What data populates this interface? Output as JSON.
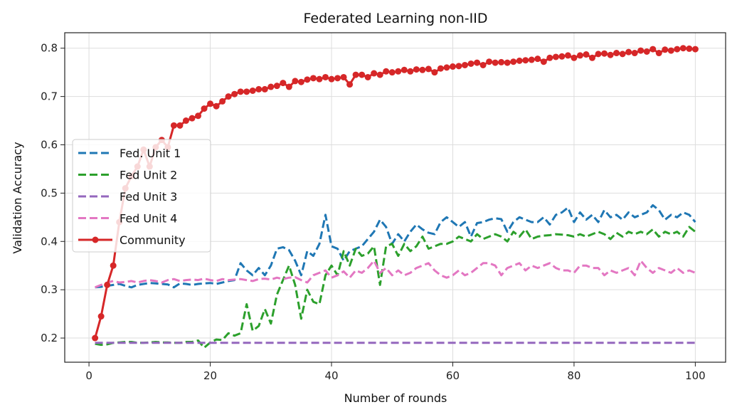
{
  "chart_data": {
    "type": "line",
    "title": "Federated Learning non-IID",
    "xlabel": "Number of rounds",
    "ylabel": "Validation Accuracy",
    "xlim": [
      -4,
      105
    ],
    "ylim": [
      0.15,
      0.832
    ],
    "xticks": [
      0,
      20,
      40,
      60,
      80,
      100
    ],
    "yticks": [
      0.2,
      0.3,
      0.4,
      0.5,
      0.6,
      0.7,
      0.8
    ],
    "grid": true,
    "legend_position": "center-left",
    "x_start": 1,
    "series": [
      {
        "name": "Fed. Unit 1",
        "color": "#1f77b4",
        "style": "dashed",
        "values": [
          0.305,
          0.306,
          0.308,
          0.31,
          0.312,
          0.308,
          0.305,
          0.31,
          0.312,
          0.314,
          0.313,
          0.312,
          0.311,
          0.305,
          0.313,
          0.312,
          0.31,
          0.312,
          0.313,
          0.314,
          0.312,
          0.315,
          0.318,
          0.32,
          0.355,
          0.34,
          0.33,
          0.345,
          0.33,
          0.35,
          0.385,
          0.388,
          0.382,
          0.36,
          0.33,
          0.38,
          0.37,
          0.395,
          0.455,
          0.39,
          0.385,
          0.36,
          0.38,
          0.385,
          0.39,
          0.405,
          0.42,
          0.445,
          0.43,
          0.395,
          0.415,
          0.4,
          0.42,
          0.435,
          0.425,
          0.418,
          0.415,
          0.44,
          0.45,
          0.44,
          0.43,
          0.44,
          0.41,
          0.438,
          0.44,
          0.445,
          0.448,
          0.446,
          0.42,
          0.44,
          0.45,
          0.445,
          0.44,
          0.44,
          0.45,
          0.435,
          0.455,
          0.46,
          0.47,
          0.44,
          0.46,
          0.445,
          0.455,
          0.44,
          0.465,
          0.45,
          0.455,
          0.445,
          0.46,
          0.45,
          0.455,
          0.46,
          0.475,
          0.465,
          0.445,
          0.455,
          0.45,
          0.46,
          0.455,
          0.44
        ]
      },
      {
        "name": "Fed Unit 2",
        "color": "#2ca02c",
        "style": "dashed",
        "values": [
          0.188,
          0.186,
          0.187,
          0.19,
          0.191,
          0.192,
          0.192,
          0.19,
          0.19,
          0.191,
          0.192,
          0.191,
          0.191,
          0.19,
          0.19,
          0.192,
          0.192,
          0.195,
          0.18,
          0.191,
          0.197,
          0.196,
          0.21,
          0.205,
          0.21,
          0.27,
          0.215,
          0.225,
          0.26,
          0.23,
          0.29,
          0.32,
          0.35,
          0.31,
          0.24,
          0.3,
          0.275,
          0.27,
          0.33,
          0.35,
          0.33,
          0.38,
          0.35,
          0.385,
          0.37,
          0.375,
          0.39,
          0.31,
          0.39,
          0.395,
          0.37,
          0.395,
          0.38,
          0.39,
          0.41,
          0.385,
          0.39,
          0.395,
          0.395,
          0.4,
          0.41,
          0.405,
          0.4,
          0.415,
          0.405,
          0.41,
          0.415,
          0.41,
          0.4,
          0.42,
          0.41,
          0.425,
          0.405,
          0.41,
          0.412,
          0.413,
          0.415,
          0.414,
          0.413,
          0.41,
          0.415,
          0.41,
          0.415,
          0.42,
          0.415,
          0.405,
          0.418,
          0.41,
          0.42,
          0.415,
          0.42,
          0.415,
          0.425,
          0.41,
          0.42,
          0.415,
          0.42,
          0.41,
          0.43,
          0.42
        ]
      },
      {
        "name": "Fed Unit 3",
        "color": "#9467bd",
        "style": "dashed",
        "values": [
          0.19,
          0.19,
          0.19,
          0.19,
          0.19,
          0.19,
          0.19,
          0.19,
          0.19,
          0.19,
          0.19,
          0.19,
          0.19,
          0.19,
          0.19,
          0.19,
          0.19,
          0.19,
          0.19,
          0.19,
          0.19,
          0.19,
          0.19,
          0.19,
          0.19,
          0.19,
          0.19,
          0.19,
          0.19,
          0.19,
          0.19,
          0.19,
          0.19,
          0.19,
          0.19,
          0.19,
          0.19,
          0.19,
          0.19,
          0.19,
          0.19,
          0.19,
          0.19,
          0.19,
          0.19,
          0.19,
          0.19,
          0.19,
          0.19,
          0.19,
          0.19,
          0.19,
          0.19,
          0.19,
          0.19,
          0.19,
          0.19,
          0.19,
          0.19,
          0.19,
          0.19,
          0.19,
          0.19,
          0.19,
          0.19,
          0.19,
          0.19,
          0.19,
          0.19,
          0.19,
          0.19,
          0.19,
          0.19,
          0.19,
          0.19,
          0.19,
          0.19,
          0.19,
          0.19,
          0.19,
          0.19,
          0.19,
          0.19,
          0.19,
          0.19,
          0.19,
          0.19,
          0.19,
          0.19,
          0.19,
          0.19,
          0.19,
          0.19,
          0.19,
          0.19,
          0.19,
          0.19,
          0.19,
          0.19,
          0.19
        ]
      },
      {
        "name": "Fed Unit 4",
        "color": "#e377c2",
        "style": "dashed",
        "values": [
          0.305,
          0.31,
          0.315,
          0.318,
          0.315,
          0.316,
          0.318,
          0.315,
          0.318,
          0.32,
          0.318,
          0.315,
          0.32,
          0.322,
          0.318,
          0.32,
          0.321,
          0.32,
          0.323,
          0.32,
          0.318,
          0.322,
          0.32,
          0.321,
          0.322,
          0.32,
          0.318,
          0.322,
          0.323,
          0.321,
          0.325,
          0.322,
          0.325,
          0.326,
          0.32,
          0.315,
          0.33,
          0.335,
          0.34,
          0.325,
          0.33,
          0.338,
          0.325,
          0.34,
          0.335,
          0.345,
          0.36,
          0.335,
          0.345,
          0.33,
          0.34,
          0.33,
          0.335,
          0.345,
          0.35,
          0.355,
          0.34,
          0.33,
          0.325,
          0.33,
          0.34,
          0.33,
          0.335,
          0.345,
          0.355,
          0.355,
          0.35,
          0.33,
          0.345,
          0.35,
          0.355,
          0.34,
          0.35,
          0.345,
          0.35,
          0.355,
          0.345,
          0.34,
          0.34,
          0.335,
          0.35,
          0.35,
          0.345,
          0.345,
          0.33,
          0.34,
          0.335,
          0.34,
          0.345,
          0.33,
          0.36,
          0.345,
          0.335,
          0.345,
          0.34,
          0.335,
          0.345,
          0.335,
          0.34,
          0.335
        ]
      },
      {
        "name": "Community",
        "color": "#d62728",
        "style": "solid-markers",
        "values": [
          0.2,
          0.245,
          0.31,
          0.35,
          0.44,
          0.51,
          0.535,
          0.555,
          0.59,
          0.555,
          0.595,
          0.61,
          0.595,
          0.64,
          0.64,
          0.65,
          0.655,
          0.66,
          0.675,
          0.685,
          0.68,
          0.69,
          0.7,
          0.705,
          0.71,
          0.71,
          0.712,
          0.715,
          0.715,
          0.72,
          0.722,
          0.728,
          0.72,
          0.732,
          0.73,
          0.735,
          0.738,
          0.736,
          0.74,
          0.736,
          0.738,
          0.74,
          0.725,
          0.745,
          0.745,
          0.74,
          0.748,
          0.745,
          0.752,
          0.75,
          0.752,
          0.755,
          0.752,
          0.756,
          0.755,
          0.757,
          0.75,
          0.758,
          0.76,
          0.762,
          0.763,
          0.765,
          0.768,
          0.77,
          0.765,
          0.772,
          0.77,
          0.771,
          0.77,
          0.772,
          0.774,
          0.775,
          0.776,
          0.778,
          0.772,
          0.78,
          0.782,
          0.783,
          0.785,
          0.78,
          0.785,
          0.787,
          0.78,
          0.788,
          0.789,
          0.786,
          0.79,
          0.788,
          0.792,
          0.79,
          0.795,
          0.793,
          0.798,
          0.79,
          0.797,
          0.795,
          0.798,
          0.8,
          0.799,
          0.798
        ]
      }
    ]
  }
}
